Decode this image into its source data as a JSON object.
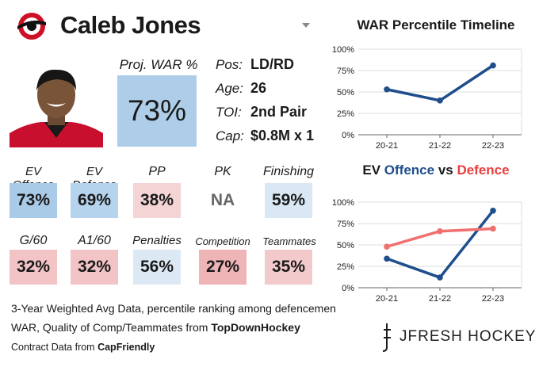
{
  "player": {
    "name": "Caleb Jones",
    "info": [
      {
        "label": "Pos:",
        "value": "LD/RD"
      },
      {
        "label": "Age:",
        "value": "26"
      },
      {
        "label": "TOI:",
        "value": "2nd Pair"
      },
      {
        "label": "Cap:",
        "value": "$0.8M x 1"
      }
    ]
  },
  "proj": {
    "label": "Proj. WAR %",
    "value": "73%",
    "color": "#aecde8"
  },
  "stats": [
    {
      "label": "EV Offence",
      "value": "73%",
      "color": "#a9cbe8"
    },
    {
      "label": "EV Defence",
      "value": "69%",
      "color": "#b5d3ec"
    },
    {
      "label": "PP",
      "value": "38%",
      "color": "#f4d4d5"
    },
    {
      "label": "PK",
      "value": "NA",
      "color": "#ffffff"
    },
    {
      "label": "Finishing",
      "value": "59%",
      "color": "#d9e8f4"
    },
    {
      "label": "G/60",
      "value": "32%",
      "color": "#f2c4c6"
    },
    {
      "label": "A1/60",
      "value": "32%",
      "color": "#f2c4c6"
    },
    {
      "label": "Penalties",
      "value": "56%",
      "color": "#dce9f4"
    },
    {
      "label": "Competition",
      "value": "27%",
      "color": "#eeb4b6"
    },
    {
      "label": "Teammates",
      "value": "35%",
      "color": "#f3cacc"
    }
  ],
  "footer": {
    "line1": "3-Year Weighted Avg Data, percentile ranking among defencemen",
    "line2_prefix": "WAR, Quality of Comp/Teammates from ",
    "line2_bold": "TopDownHockey",
    "line3_prefix": "Contract Data from ",
    "line3_bold": "CapFriendly"
  },
  "brand": {
    "text": "JFRESH HOCKEY"
  },
  "chart_data": [
    {
      "type": "line",
      "title": "WAR Percentile Timeline",
      "categories": [
        "20-21",
        "21-22",
        "22-23"
      ],
      "series": [
        {
          "name": "WAR",
          "values": [
            53,
            40,
            81
          ],
          "color": "#1f4e8c"
        }
      ],
      "ylim": [
        0,
        100
      ],
      "yticks": [
        "0%",
        "25%",
        "50%",
        "75%",
        "100%"
      ]
    },
    {
      "type": "line",
      "title_parts": [
        {
          "text": "EV ",
          "color": "#1a1a1a"
        },
        {
          "text": "Offence",
          "color": "#1f4e8c"
        },
        {
          "text": " vs ",
          "color": "#1a1a1a"
        },
        {
          "text": "Defence",
          "color": "#e8403f"
        }
      ],
      "categories": [
        "20-21",
        "21-22",
        "22-23"
      ],
      "series": [
        {
          "name": "Offence",
          "values": [
            34,
            12,
            90
          ],
          "color": "#1f4e8c"
        },
        {
          "name": "Defence",
          "values": [
            48,
            66,
            69
          ],
          "color": "#f07070"
        }
      ],
      "ylim": [
        0,
        100
      ],
      "yticks": [
        "0%",
        "25%",
        "50%",
        "75%",
        "100%"
      ]
    }
  ]
}
